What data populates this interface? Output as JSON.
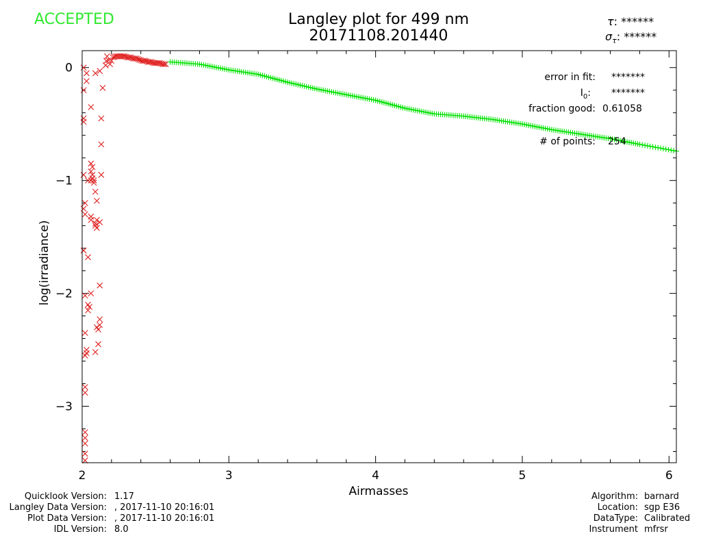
{
  "status": "ACCEPTED",
  "title_line1": "Langley plot for 499 nm",
  "title_line2": "20171108.201440",
  "tau": {
    "symbol": "τ",
    "value": "******"
  },
  "sigma_tau": {
    "symbol": "σ",
    "sub": "τ",
    "value": "******"
  },
  "fit_box": {
    "error_label": "error in fit:",
    "error_value": "*******",
    "i0_label": "I",
    "i0_sub": "0",
    "i0_value": "*******",
    "fraction_label": "fraction good:",
    "fraction_value": "0.61058",
    "points_label": "# of points:",
    "points_value": "254"
  },
  "footer_left": [
    {
      "label": "Quicklook Version:",
      "value": "1.17"
    },
    {
      "label": "Langley Data Version:",
      "value": ", 2017-11-10 20:16:01"
    },
    {
      "label": "Plot Data Version:",
      "value": ", 2017-11-10 20:16:01"
    },
    {
      "label": "IDL Version:",
      "value": "8.0"
    }
  ],
  "footer_right": [
    {
      "label": "Algorithm:",
      "value": "barnard"
    },
    {
      "label": "Location:",
      "value": "sgp E36"
    },
    {
      "label": "DataType:",
      "value": "Calibrated"
    },
    {
      "label": "Instrument",
      "value": "mfrsr"
    }
  ],
  "chart_data": {
    "type": "scatter",
    "title": "Langley plot for 499 nm",
    "xlabel": "Airmasses",
    "ylabel": "log(irradiance)",
    "xlim": [
      2.0,
      6.05
    ],
    "ylim": [
      -3.5,
      0.15
    ],
    "xticks": [
      2,
      3,
      4,
      5,
      6
    ],
    "yticks": [
      0,
      -1,
      -2,
      -3
    ],
    "colors": {
      "accepted": "#00e000",
      "rejected": "#e02020"
    },
    "series": [
      {
        "marker": "x",
        "points": [
          [
            2.01,
            0.0
          ],
          [
            2.01,
            -0.2
          ],
          [
            2.01,
            -0.45
          ],
          [
            2.01,
            -0.48
          ],
          [
            2.01,
            -0.95
          ],
          [
            2.01,
            -1.25
          ],
          [
            2.01,
            -1.62
          ],
          [
            2.02,
            -1.2
          ],
          [
            2.02,
            -1.3
          ],
          [
            2.02,
            -2.02
          ],
          [
            2.02,
            -2.35
          ],
          [
            2.02,
            -2.55
          ],
          [
            2.02,
            -2.83
          ],
          [
            2.02,
            -2.88
          ],
          [
            2.02,
            -3.23
          ],
          [
            2.02,
            -3.28
          ],
          [
            2.02,
            -3.33
          ],
          [
            2.02,
            -3.42
          ],
          [
            2.02,
            -3.48
          ],
          [
            2.03,
            -0.05
          ],
          [
            2.03,
            -0.12
          ],
          [
            2.03,
            -2.5
          ],
          [
            2.03,
            -2.53
          ],
          [
            2.04,
            -1.0
          ],
          [
            2.04,
            -1.68
          ],
          [
            2.04,
            -2.1
          ],
          [
            2.04,
            -2.15
          ],
          [
            2.05,
            -2.12
          ],
          [
            2.06,
            -0.35
          ],
          [
            2.06,
            -0.85
          ],
          [
            2.06,
            -0.92
          ],
          [
            2.06,
            -1.0
          ],
          [
            2.06,
            -1.32
          ],
          [
            2.06,
            -1.35
          ],
          [
            2.06,
            -2.0
          ],
          [
            2.07,
            -0.88
          ],
          [
            2.07,
            -0.95
          ],
          [
            2.07,
            -0.98
          ],
          [
            2.08,
            -1.0
          ],
          [
            2.08,
            -1.02
          ],
          [
            2.09,
            -0.05
          ],
          [
            2.09,
            -1.1
          ],
          [
            2.09,
            -1.38
          ],
          [
            2.09,
            -1.4
          ],
          [
            2.09,
            -2.52
          ],
          [
            2.1,
            -1.18
          ],
          [
            2.1,
            -1.35
          ],
          [
            2.1,
            -1.42
          ],
          [
            2.1,
            -2.3
          ],
          [
            2.11,
            -2.45
          ],
          [
            2.11,
            -2.32
          ],
          [
            2.12,
            -0.03
          ],
          [
            2.12,
            -1.37
          ],
          [
            2.12,
            -2.28
          ],
          [
            2.12,
            -2.23
          ],
          [
            2.12,
            -1.93
          ],
          [
            2.13,
            -0.45
          ],
          [
            2.13,
            -0.68
          ],
          [
            2.13,
            -0.95
          ],
          [
            2.14,
            -0.18
          ],
          [
            2.16,
            0.02
          ],
          [
            2.17,
            0.1
          ],
          [
            2.19,
            0.03
          ],
          [
            2.21,
            0.09
          ],
          [
            2.23,
            0.1
          ],
          [
            2.25,
            0.1
          ],
          [
            2.27,
            0.1
          ],
          [
            2.29,
            0.1
          ],
          [
            2.31,
            0.09
          ],
          [
            2.33,
            0.09
          ],
          [
            2.35,
            0.08
          ],
          [
            2.37,
            0.08
          ],
          [
            2.39,
            0.07
          ],
          [
            2.41,
            0.06
          ],
          [
            2.43,
            0.06
          ],
          [
            2.45,
            0.05
          ],
          [
            2.47,
            0.05
          ],
          [
            2.49,
            0.04
          ],
          [
            2.51,
            0.04
          ],
          [
            2.53,
            0.04
          ],
          [
            2.55,
            0.03
          ],
          [
            2.57,
            0.03
          ]
        ]
      },
      {
        "marker": "+",
        "points": [
          [
            2.6,
            0.05
          ],
          [
            2.8,
            0.03
          ],
          [
            3.0,
            -0.02
          ],
          [
            3.2,
            -0.06
          ],
          [
            3.4,
            -0.13
          ],
          [
            3.6,
            -0.19
          ],
          [
            3.8,
            -0.24
          ],
          [
            4.0,
            -0.29
          ],
          [
            4.2,
            -0.36
          ],
          [
            4.4,
            -0.41
          ],
          [
            4.6,
            -0.43
          ],
          [
            4.8,
            -0.46
          ],
          [
            5.0,
            -0.5
          ],
          [
            5.2,
            -0.55
          ],
          [
            5.4,
            -0.59
          ],
          [
            5.6,
            -0.63
          ],
          [
            5.8,
            -0.68
          ],
          [
            6.05,
            -0.74
          ]
        ]
      }
    ]
  }
}
